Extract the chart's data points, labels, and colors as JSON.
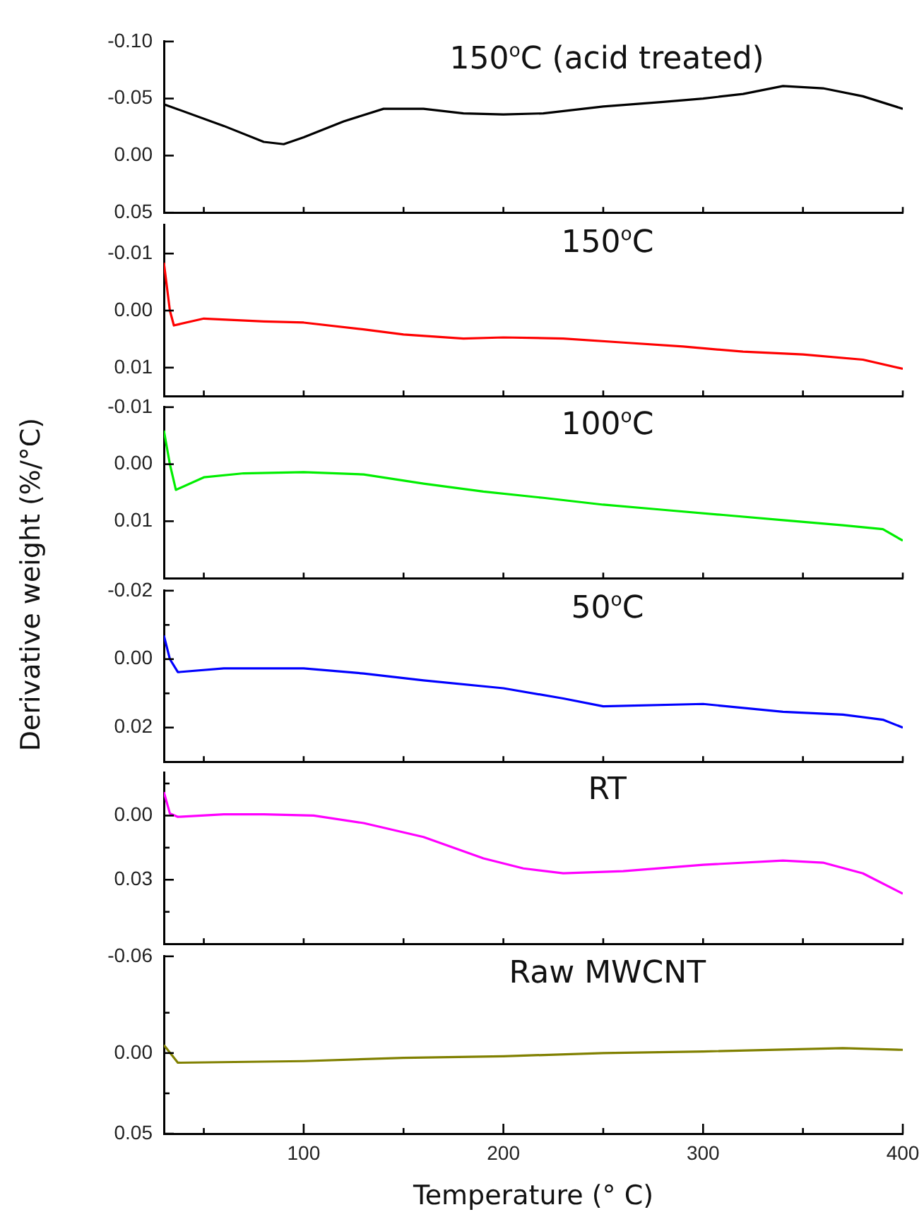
{
  "chart_data": [
    {
      "type": "line",
      "title": "150$^{o}$C (acid treated)",
      "tick_labels": "y",
      "xlim": [
        30,
        400
      ],
      "xticks": [
        {
          "value": 50,
          "label": null
        },
        {
          "value": 100,
          "label": null
        },
        {
          "value": 150,
          "label": null
        },
        {
          "value": 200,
          "label": null
        },
        {
          "value": 250,
          "label": null
        },
        {
          "value": 300,
          "label": null
        },
        {
          "value": 350,
          "label": null
        },
        {
          "value": 400,
          "label": null
        }
      ],
      "ylim": [
        0.05,
        -0.1
      ],
      "yticks": [
        {
          "value": -0.1,
          "label": "-0.10"
        },
        -0.05,
        {
          "value": 0,
          "label": "0.00"
        },
        0.05
      ],
      "x": [
        30,
        60,
        80,
        90,
        100,
        120,
        140,
        160,
        180,
        200,
        220,
        250,
        280,
        300,
        320,
        340,
        360,
        380,
        400
      ],
      "series": [
        {
          "color": "#000000",
          "values": [
            -0.045,
            -0.026,
            -0.012,
            -0.01,
            -0.016,
            -0.03,
            -0.041,
            -0.041,
            -0.037,
            -0.036,
            -0.037,
            -0.043,
            -0.047,
            -0.05,
            -0.054,
            -0.061,
            -0.059,
            -0.052,
            -0.041
          ]
        }
      ]
    },
    {
      "type": "line",
      "title": "150$^{o}$C",
      "tick_labels": "y",
      "xlim": [
        30,
        400
      ],
      "xticks": [
        {
          "value": 50,
          "label": null
        },
        {
          "value": 100,
          "label": null
        },
        {
          "value": 150,
          "label": null
        },
        {
          "value": 200,
          "label": null
        },
        {
          "value": 250,
          "label": null
        },
        {
          "value": 300,
          "label": null
        },
        {
          "value": 350,
          "label": null
        },
        {
          "value": 400,
          "label": null
        }
      ],
      "ylim": [
        0.015,
        -0.015
      ],
      "yticks": [
        -0.01,
        {
          "value": 0,
          "label": "0.00"
        },
        0.01
      ],
      "x": [
        30,
        33,
        35,
        50,
        80,
        100,
        130,
        150,
        180,
        200,
        230,
        260,
        290,
        320,
        350,
        380,
        400
      ],
      "series": [
        {
          "color": "#ff0000",
          "values": [
            -0.0084,
            0,
            0.0026,
            0.0014,
            0.0019,
            0.0021,
            0.0033,
            0.0042,
            0.0049,
            0.0047,
            0.0049,
            0.0056,
            0.0063,
            0.0072,
            0.0077,
            0.0086,
            0.0102
          ]
        }
      ]
    },
    {
      "type": "line",
      "title": "100$^{o}$C",
      "tick_labels": "y",
      "xlim": [
        30,
        400
      ],
      "xticks": [
        {
          "value": 50,
          "label": null
        },
        {
          "value": 100,
          "label": null
        },
        {
          "value": 150,
          "label": null
        },
        {
          "value": 200,
          "label": null
        },
        {
          "value": 250,
          "label": null
        },
        {
          "value": 300,
          "label": null
        },
        {
          "value": 350,
          "label": null
        },
        {
          "value": 400,
          "label": null
        }
      ],
      "ylim": [
        0.02,
        -0.01
      ],
      "yticks": [
        -0.01,
        {
          "value": 0,
          "label": "0.00"
        },
        0.01
      ],
      "x": [
        30,
        33,
        36,
        50,
        70,
        100,
        130,
        160,
        190,
        220,
        250,
        280,
        310,
        340,
        370,
        390,
        400
      ],
      "series": [
        {
          "color": "#00ee00",
          "values": [
            -0.0059,
            0,
            0.0045,
            0.0023,
            0.0016,
            0.0014,
            0.0018,
            0.0034,
            0.0048,
            0.0059,
            0.0071,
            0.008,
            0.0089,
            0.0098,
            0.0107,
            0.0114,
            0.0134
          ]
        }
      ]
    },
    {
      "type": "line",
      "title": "50$^{o}$C",
      "ylabel": "Derivative weight (%/°C)",
      "tick_labels": "y",
      "xlim": [
        30,
        400
      ],
      "xticks": [
        {
          "value": 50,
          "label": null
        },
        {
          "value": 100,
          "label": null
        },
        {
          "value": 150,
          "label": null
        },
        {
          "value": 200,
          "label": null
        },
        {
          "value": 250,
          "label": null
        },
        {
          "value": 300,
          "label": null
        },
        {
          "value": 350,
          "label": null
        },
        {
          "value": 400,
          "label": null
        }
      ],
      "ylim": [
        0.03,
        -0.02
      ],
      "yticks": [
        -0.02,
        {
          "value": -0.01,
          "label": null
        },
        {
          "value": 0,
          "label": "0.00"
        },
        {
          "value": 0.01,
          "label": null
        },
        0.02
      ],
      "x": [
        30,
        33,
        37,
        60,
        100,
        130,
        160,
        200,
        230,
        250,
        300,
        340,
        370,
        390,
        400
      ],
      "series": [
        {
          "color": "#0000ff",
          "values": [
            -0.0069,
            0,
            0.0038,
            0.0027,
            0.0027,
            0.0042,
            0.0062,
            0.0085,
            0.0115,
            0.0138,
            0.0131,
            0.0154,
            0.0162,
            0.0177,
            0.02
          ]
        }
      ]
    },
    {
      "type": "line",
      "title": "RT",
      "tick_labels": "y",
      "xlim": [
        30,
        400
      ],
      "xticks": [
        {
          "value": 50,
          "label": null
        },
        {
          "value": 100,
          "label": null
        },
        {
          "value": 150,
          "label": null
        },
        {
          "value": 200,
          "label": null
        },
        {
          "value": 250,
          "label": null
        },
        {
          "value": 300,
          "label": null
        },
        {
          "value": 350,
          "label": null
        },
        {
          "value": 400,
          "label": null
        }
      ],
      "ylim": [
        0.06,
        -0.02
      ],
      "yticks": [
        {
          "value": -0.015,
          "label": null
        },
        {
          "value": 0,
          "label": "0.00"
        },
        {
          "value": 0.015,
          "label": null
        },
        0.03,
        {
          "value": 0.045,
          "label": null
        }
      ],
      "x": [
        30,
        33,
        37,
        60,
        80,
        105,
        130,
        160,
        190,
        210,
        230,
        260,
        300,
        340,
        360,
        380,
        400
      ],
      "series": [
        {
          "color": "#ff00ff",
          "values": [
            -0.011,
            -0.001,
            0.0006,
            -0.0006,
            -0.0006,
            0,
            0.0035,
            0.01,
            0.02,
            0.0247,
            0.027,
            0.026,
            0.023,
            0.021,
            0.022,
            0.027,
            0.0365
          ]
        }
      ]
    },
    {
      "type": "line",
      "title": "Raw MWCNT",
      "xlabel": "Temperature (° C)",
      "xlim": [
        30,
        400
      ],
      "xticks": [
        {
          "value": 50,
          "label": null
        },
        100,
        {
          "value": 150,
          "label": null
        },
        200,
        {
          "value": 250,
          "label": null
        },
        300,
        {
          "value": 350,
          "label": null
        },
        400
      ],
      "ylim": [
        0.05,
        -0.06
      ],
      "yticks": [
        -0.06,
        {
          "value": -0.025,
          "label": null
        },
        {
          "value": 0,
          "label": "0.00"
        },
        {
          "value": 0.025,
          "label": null
        },
        0.05
      ],
      "x": [
        30,
        37,
        100,
        150,
        200,
        250,
        300,
        370,
        400
      ],
      "series": [
        {
          "color": "#808000",
          "values": [
            -0.005,
            0.006,
            0.005,
            0.003,
            0.002,
            0,
            -0.001,
            -0.003,
            -0.002
          ]
        }
      ]
    }
  ]
}
